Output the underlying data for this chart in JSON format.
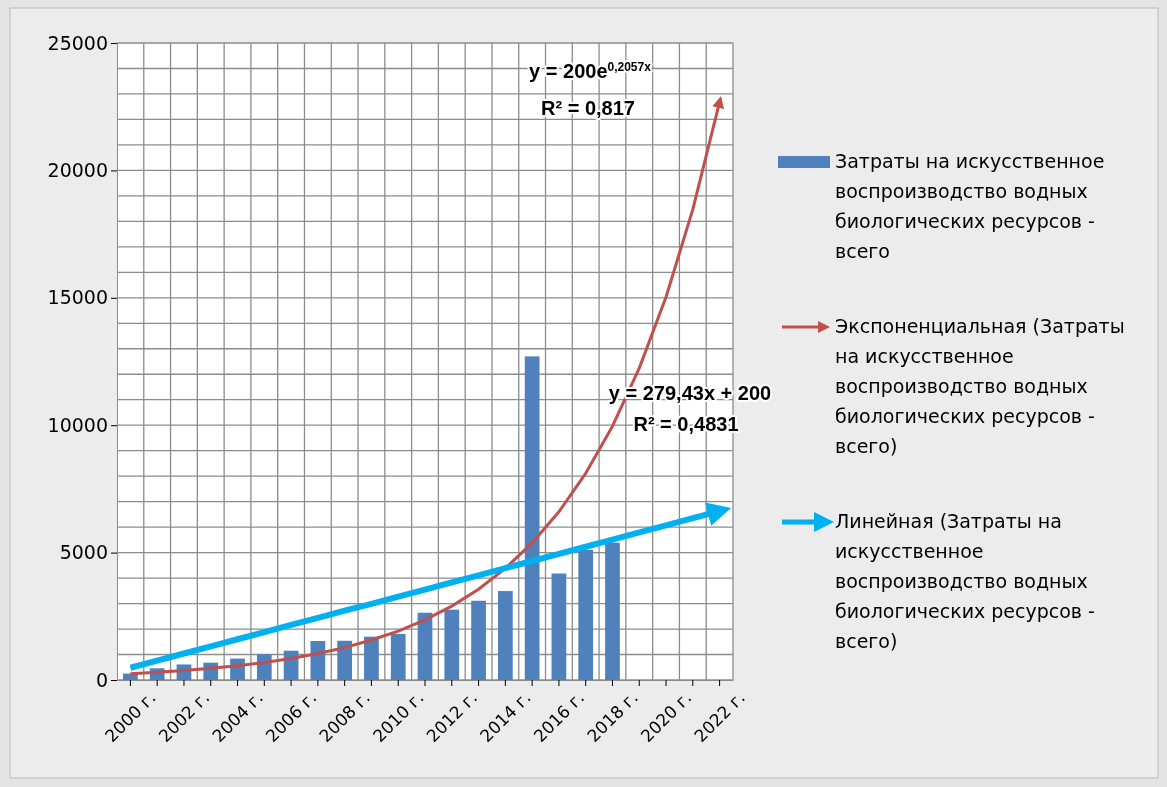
{
  "chart_data": {
    "type": "bar",
    "categories": [
      "2000 г.",
      null,
      "2002 г.",
      null,
      "2004 г.",
      null,
      "2006 г.",
      null,
      "2008 г.",
      null,
      "2010 г.",
      null,
      "2012 г.",
      null,
      "2014 г.",
      null,
      "2016 г.",
      null,
      "2018 г.",
      null,
      "2020 г.",
      null,
      "2022 г."
    ],
    "series": [
      {
        "name": "Затраты на искусственное воспроизводство водных биологических ресурсов - всего",
        "color": "#4f81bd",
        "values": [
          250,
          460,
          610,
          680,
          840,
          1010,
          1150,
          1530,
          1540,
          1700,
          1810,
          2640,
          2760,
          3110,
          3490,
          12700,
          4180,
          5110,
          5390,
          null,
          null,
          null,
          null
        ]
      },
      {
        "name": "Экспоненциальная (Затраты на искусственное воспроизводство водных биологических ресурсов - всего)",
        "type": "line",
        "color": "#c0504d",
        "values": [
          250,
          300,
          370,
          460,
          560,
          690,
          840,
          1040,
          1270,
          1570,
          1920,
          2360,
          2900,
          3560,
          4380,
          5380,
          6600,
          8110,
          9960,
          12240,
          15030,
          18470,
          22690
        ]
      },
      {
        "name": "Линейная (Затраты на искусственное воспроизводство водных биологических ресурсов - всего)",
        "type": "line",
        "color": "#00b0f0",
        "values": [
          480,
          760,
          1040,
          1320,
          1600,
          1880,
          2160,
          2440,
          2720,
          2990,
          3270,
          3550,
          3830,
          4110,
          4390,
          4670,
          4950,
          5230,
          5510,
          5790,
          6070,
          6350,
          6630
        ]
      }
    ],
    "ylim": [
      0,
      25000
    ],
    "yticks": [
      0,
      5000,
      10000,
      15000,
      20000,
      25000
    ],
    "grid": true,
    "legend": "right",
    "annotations": [
      "y = 200e$^{0,2057x}$",
      "R² = 0,817",
      "y = 279,43x + 200",
      "R² = 0,4831"
    ]
  }
}
